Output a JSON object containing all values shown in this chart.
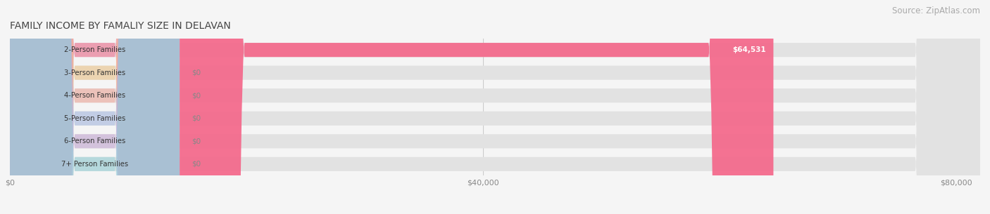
{
  "title": "FAMILY INCOME BY FAMALIY SIZE IN DELAVAN",
  "source": "Source: ZipAtlas.com",
  "categories": [
    "2-Person Families",
    "3-Person Families",
    "4-Person Families",
    "5-Person Families",
    "6-Person Families",
    "7+ Person Families"
  ],
  "values": [
    64531,
    0,
    0,
    0,
    0,
    0
  ],
  "bar_colors": [
    "#f4678a",
    "#f5c98a",
    "#f5a89a",
    "#a8bce8",
    "#c8a8d8",
    "#90d0d8"
  ],
  "value_labels": [
    "$64,531",
    "$0",
    "$0",
    "$0",
    "$0",
    "$0"
  ],
  "xlim": [
    0,
    82000
  ],
  "xticks": [
    0,
    40000,
    80000
  ],
  "xticklabels": [
    "$0",
    "$40,000",
    "$80,000"
  ],
  "background_color": "#f5f5f5",
  "title_fontsize": 10,
  "source_fontsize": 8.5,
  "bar_height": 0.62,
  "figsize": [
    14.06,
    3.05
  ],
  "dpi": 100
}
